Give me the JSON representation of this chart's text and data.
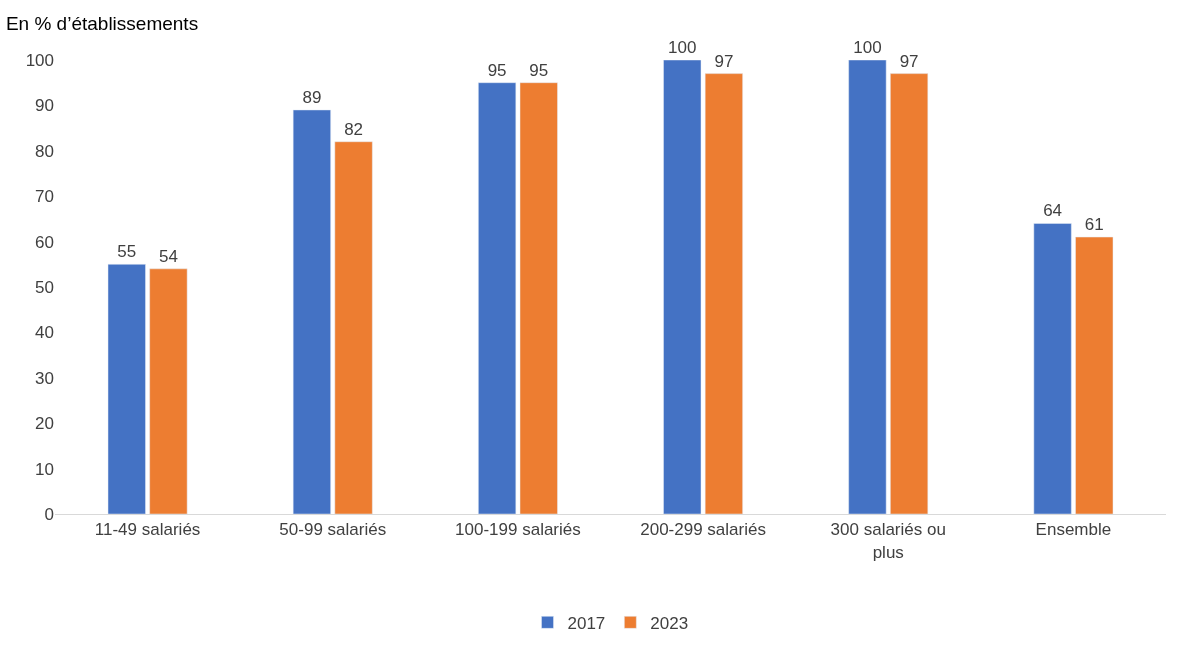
{
  "chart_data": {
    "type": "bar",
    "title": "En % d’établissements",
    "categories": [
      "11-49 salariés",
      "50-99 salariés",
      "100-199 salariés",
      "200-299 salariés",
      "300 salariés ou plus",
      "Ensemble"
    ],
    "series": [
      {
        "name": "2017",
        "color": "#4472c4",
        "values": [
          55,
          89,
          95,
          100,
          100,
          64
        ]
      },
      {
        "name": "2023",
        "color": "#ed7d31",
        "values": [
          54,
          82,
          95,
          97,
          97,
          61
        ]
      }
    ],
    "ylim": [
      0,
      100
    ],
    "yticks": [
      0,
      10,
      20,
      30,
      40,
      50,
      60,
      70,
      80,
      90,
      100
    ],
    "data_labels": true,
    "legend": "bottom"
  }
}
